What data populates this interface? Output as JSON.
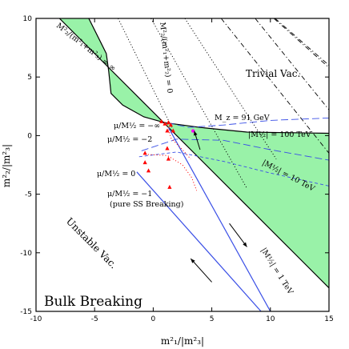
{
  "chart_data": {
    "type": "line",
    "title": "",
    "xlabel": "m²₁/|m²₃|",
    "ylabel": "m²₂/|m²₃|",
    "xlim": [
      -10,
      15
    ],
    "ylim": [
      -15,
      10
    ],
    "xticks": [
      -10,
      -5,
      0,
      5,
      10,
      15
    ],
    "yticks": [
      10,
      5,
      0,
      -5,
      -10,
      -15
    ],
    "grid": false,
    "colors": {
      "shade": "#99f2a8",
      "blue": "#3a4fe6",
      "red": "#ff0000",
      "black": "#000000"
    },
    "regions": [
      {
        "name": "upper-shaded",
        "fill": "shade",
        "points": [
          [
            -8,
            10
          ],
          [
            -5.5,
            10
          ],
          [
            -4,
            7
          ],
          [
            -3.8,
            5.5
          ],
          [
            -3.6,
            3.6
          ],
          [
            -2.6,
            2.6
          ],
          [
            -0.8,
            1.6
          ],
          [
            1,
            1.1
          ],
          [
            2.5,
            0.9
          ],
          [
            4,
            0.7
          ],
          [
            6,
            0.5
          ],
          [
            8,
            0.3
          ],
          [
            15,
            0.2
          ],
          [
            15,
            -13
          ],
          [
            -8,
            10
          ]
        ]
      }
    ],
    "curves": [
      {
        "name": "boundary-infinity",
        "style": "solid",
        "color": "black",
        "points": [
          [
            -8,
            10
          ],
          [
            15,
            -13
          ]
        ]
      },
      {
        "name": "boundary-zero",
        "style": "solid",
        "color": "black",
        "points": [
          [
            -5.5,
            10
          ],
          [
            -4,
            7
          ],
          [
            -3.8,
            5.5
          ],
          [
            -3.6,
            3.6
          ],
          [
            -2.6,
            2.6
          ],
          [
            -0.8,
            1.6
          ],
          [
            1,
            1.1
          ],
          [
            2.5,
            0.9
          ],
          [
            4,
            0.7
          ],
          [
            6,
            0.5
          ],
          [
            8,
            0.3
          ],
          [
            15,
            0.2
          ]
        ]
      },
      {
        "name": "dotted-1",
        "style": "dotted",
        "color": "black",
        "points": [
          [
            -3,
            10
          ],
          [
            1.6,
            0.7
          ]
        ]
      },
      {
        "name": "dotted-2",
        "style": "dotted",
        "color": "black",
        "points": [
          [
            -0.2,
            10
          ],
          [
            8,
            -4.5
          ]
        ]
      },
      {
        "name": "dotted-3",
        "style": "dotted",
        "color": "black",
        "points": [
          [
            2.7,
            10
          ],
          [
            10.5,
            -2
          ]
        ]
      },
      {
        "name": "dashdot-1",
        "style": "dashdot",
        "color": "black",
        "points": [
          [
            5.8,
            10
          ],
          [
            15,
            -1.5
          ]
        ]
      },
      {
        "name": "dashdot-2",
        "style": "dashdot",
        "color": "black",
        "points": [
          [
            8.7,
            10
          ],
          [
            15,
            2.2
          ]
        ]
      },
      {
        "name": "dashdot-3",
        "style": "dashdot",
        "color": "black",
        "points": [
          [
            10.3,
            10
          ],
          [
            15,
            5.8
          ]
        ]
      },
      {
        "name": "dashdot-cross",
        "style": "dashdot",
        "color": "black",
        "points": [
          [
            10.4,
            10
          ],
          [
            15,
            6
          ]
        ]
      },
      {
        "name": "m12-1tev",
        "style": "solid",
        "color": "blue",
        "points": [
          [
            1.3,
            0.7
          ],
          [
            10,
            -15
          ]
        ]
      },
      {
        "name": "pure-ss-line",
        "style": "solid",
        "color": "blue",
        "points": [
          [
            -1.4,
            -3.1
          ],
          [
            9.2,
            -15
          ]
        ]
      },
      {
        "name": "m12-100tev",
        "style": "longdash",
        "color": "blue",
        "points": [
          [
            1.2,
            1.1
          ],
          [
            3,
            0.7
          ],
          [
            6,
            0.9
          ],
          [
            10,
            1.3
          ],
          [
            15,
            1.5
          ]
        ]
      },
      {
        "name": "m12-10tev",
        "style": "longdash",
        "color": "blue",
        "points": [
          [
            -1,
            -1.3
          ],
          [
            2,
            -0.3
          ],
          [
            6,
            -0.4
          ],
          [
            10,
            -1.2
          ],
          [
            15,
            -2.1
          ]
        ]
      },
      {
        "name": "m12-lower",
        "style": "shortdash",
        "color": "blue",
        "points": [
          [
            -1.2,
            -1.8
          ],
          [
            2,
            -1.4
          ],
          [
            6,
            -2.2
          ],
          [
            10,
            -3.2
          ],
          [
            15,
            -4.3
          ]
        ]
      },
      {
        "name": "red-dotted-1",
        "style": "dotted",
        "color": "red",
        "points": [
          [
            1.2,
            1.0
          ],
          [
            1.5,
            -0.2
          ],
          [
            2.5,
            -1.2
          ],
          [
            3.2,
            -2
          ]
        ]
      },
      {
        "name": "red-dotted-2",
        "style": "dotted",
        "color": "red",
        "points": [
          [
            -0.7,
            -1.6
          ],
          [
            1.2,
            -1.7
          ],
          [
            2.5,
            -2.5
          ],
          [
            3.3,
            -3.6
          ],
          [
            3.7,
            -4.7
          ]
        ]
      }
    ],
    "markers": [
      {
        "name": "red-tri",
        "color": "red",
        "points": [
          [
            0.7,
            1.2
          ],
          [
            1.0,
            1.0
          ],
          [
            1.3,
            1.1
          ],
          [
            1.5,
            0.9
          ],
          [
            1.2,
            0.4
          ],
          [
            1.7,
            0.4
          ],
          [
            -0.7,
            -1.5
          ],
          [
            -0.7,
            -2.3
          ],
          [
            -0.4,
            -3.0
          ],
          [
            1.2,
            -1.1
          ],
          [
            1.3,
            -2.0
          ],
          [
            1.4,
            -4.4
          ]
        ]
      },
      {
        "name": "magenta-dot",
        "color": "#ff00ff",
        "points": [
          [
            3.4,
            0.4
          ]
        ]
      }
    ],
    "arrows": [
      {
        "name": "arrow-down-right",
        "from": [
          6.5,
          -7.5
        ],
        "to": [
          8,
          -9.5
        ]
      },
      {
        "name": "arrow-up-left",
        "from": [
          5,
          -12.5
        ],
        "to": [
          3.2,
          -10.5
        ]
      },
      {
        "name": "mz-pointer",
        "from": [
          4,
          -1.2
        ],
        "to": [
          3.5,
          0.4
        ]
      }
    ],
    "annotations": {
      "inf": "M²₂/(m²₁+m²₃) = ∞",
      "zero": "M²₂/(m²₁+m²₂) = 0",
      "trivial": "Trivial Vac.",
      "mz": "M_z = 91 GeV",
      "m100": "|M½| = 100 TeV",
      "m10": "|M½| = 10 TeV",
      "m1": "|M½| = 1 TeV",
      "mu_inf": "μ/M½ = −∞",
      "mu_m2": "μ/M½ = −2",
      "mu_0": "μ/M½ = 0",
      "mu_m1": "μ/M½ = −1",
      "pure": "(pure SS Breaking)",
      "unstable": "Unstable Vac.",
      "bulk": "Bulk Breaking"
    }
  }
}
